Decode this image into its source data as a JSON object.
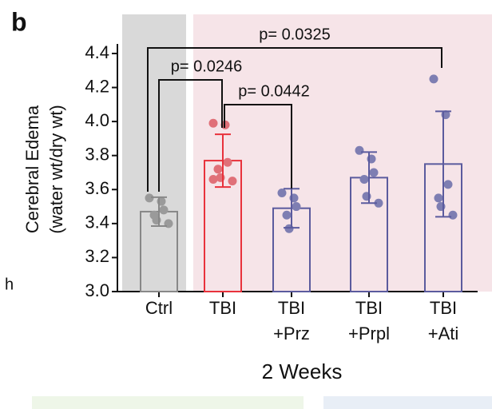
{
  "chart_data": {
    "type": "bar",
    "panel_label": "b",
    "stray_label": "h",
    "y_label": [
      "Cerebral Edema",
      "(water wt/dry wt)"
    ],
    "x_label": "2 Weeks",
    "categories": [
      [
        "Ctrl"
      ],
      [
        "TBI"
      ],
      [
        "TBI",
        "+Prz"
      ],
      [
        "TBI",
        "+Prpl"
      ],
      [
        "TBI",
        "+Ati"
      ]
    ],
    "values": [
      3.47,
      3.77,
      3.49,
      3.67,
      3.75
    ],
    "errors": [
      0.085,
      0.155,
      0.115,
      0.15,
      0.31
    ],
    "points": [
      [
        3.55,
        3.53,
        3.48,
        3.45,
        3.42,
        3.4
      ],
      [
        3.99,
        3.98,
        3.76,
        3.72,
        3.67,
        3.65,
        3.66
      ],
      [
        3.58,
        3.55,
        3.5,
        3.45,
        3.37
      ],
      [
        3.83,
        3.78,
        3.7,
        3.66,
        3.56,
        3.52
      ],
      [
        4.25,
        4.04,
        3.63,
        3.55,
        3.5,
        3.45
      ]
    ],
    "colors": [
      "#888888",
      "#e8323c",
      "#5b5b9e",
      "#5b5b9e",
      "#5b5b9e"
    ],
    "point_colors": [
      "#9a9a9a",
      "#e07078",
      "#7e7eb2",
      "#7e7eb2",
      "#7e7eb2"
    ],
    "annotations": [
      {
        "text": "p= 0.0325",
        "from": 0,
        "to": 4
      },
      {
        "text": "p= 0.0246",
        "from": 0,
        "to": 1
      },
      {
        "text": "p= 0.0442",
        "from": 1,
        "to": 2
      }
    ],
    "ylim": [
      3.0,
      4.63
    ],
    "yticks": [
      {
        "value": 3.0,
        "label": "3.0"
      },
      3.2,
      3.4,
      3.6,
      3.8,
      {
        "value": 4.0,
        "label": "4.0"
      },
      4.2,
      4.4
    ]
  }
}
